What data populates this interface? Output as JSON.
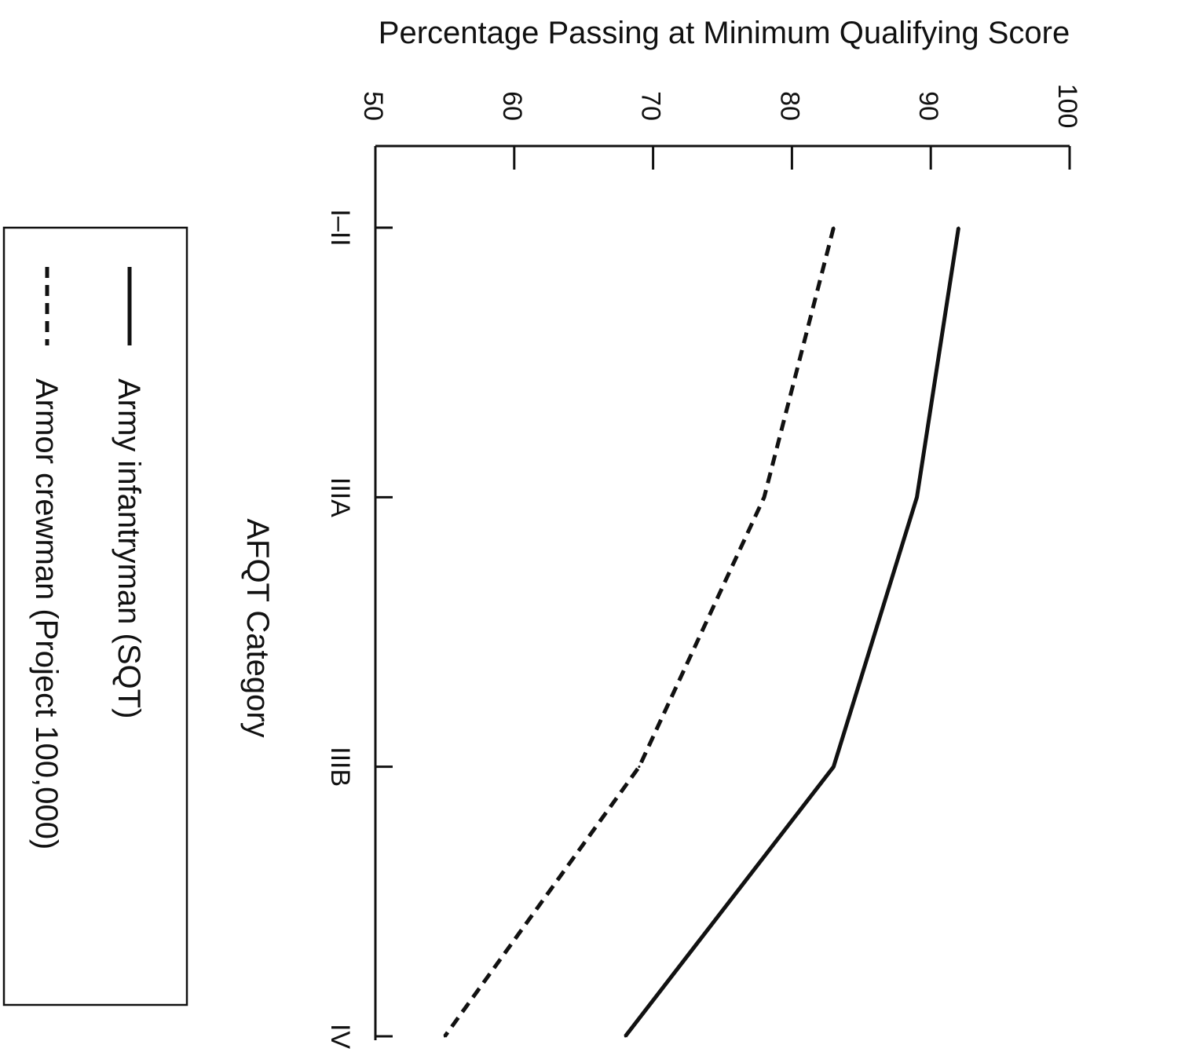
{
  "chart_data": {
    "type": "line",
    "orientation": "rotated-90-clockwise",
    "ylabel": "Percentage Passing at Minimum Qualifying Score",
    "xlabel": "AFQT Category",
    "categories": [
      "I–II",
      "IIIA",
      "IIIB",
      "IV"
    ],
    "y_ticks": [
      "50",
      "60",
      "70",
      "80",
      "90",
      "100"
    ],
    "ylim": [
      50,
      100
    ],
    "grid": false,
    "legend_position": "bottom-left",
    "series": [
      {
        "name": "Army infantryman (SQT)",
        "style": "solid",
        "values": [
          92,
          89,
          83,
          68
        ]
      },
      {
        "name": "Armor crewman (Project 100,000)",
        "style": "dashed",
        "values": [
          83,
          78,
          69,
          55
        ]
      }
    ]
  },
  "colors": {
    "line": "#111111",
    "background": "#ffffff"
  }
}
